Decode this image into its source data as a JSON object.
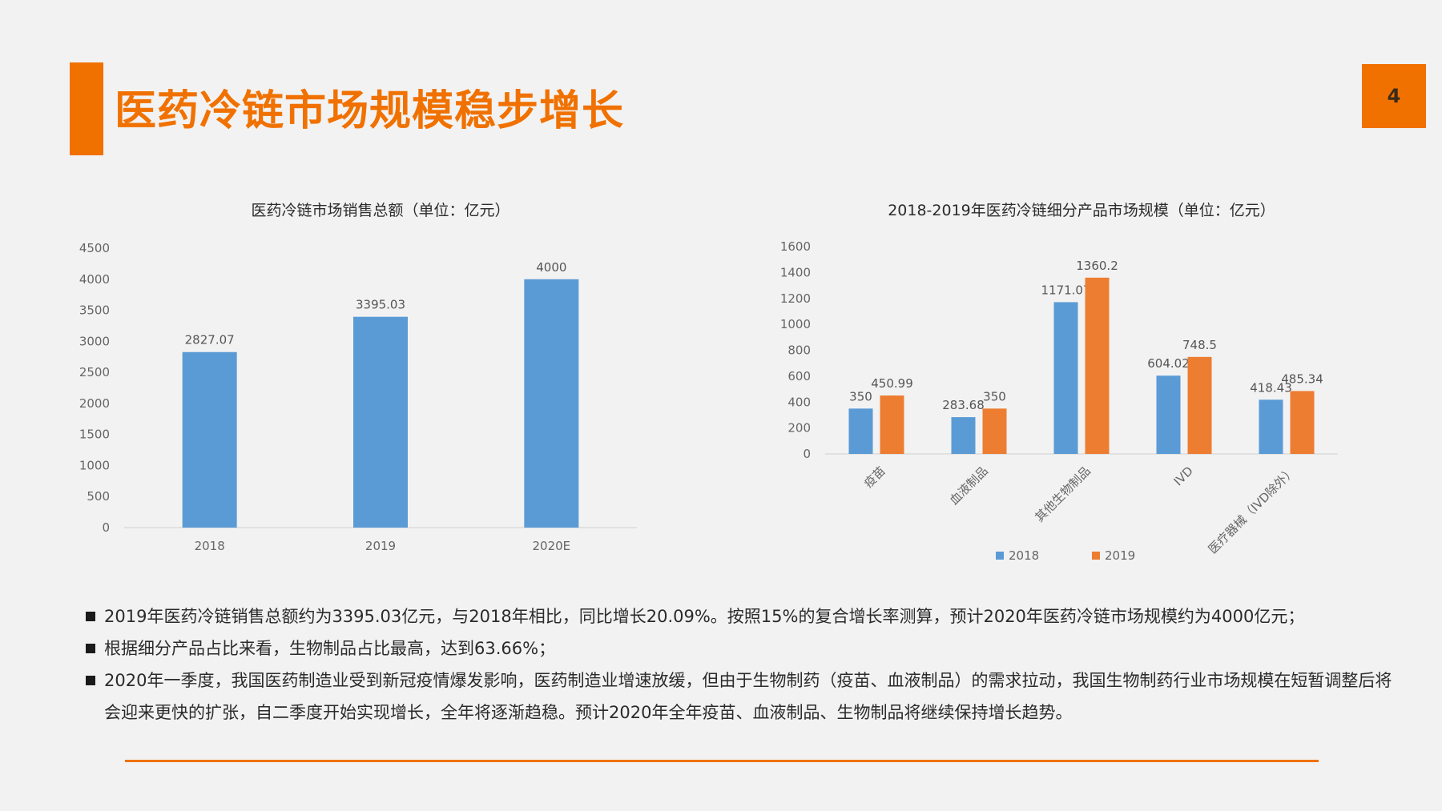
{
  "page": {
    "title": "医药冷链市场规模稳步增长",
    "number": "4",
    "accent_color": "#f07100"
  },
  "chart_data": [
    {
      "type": "bar",
      "title": "医药冷链市场销售总额（单位：亿元）",
      "categories": [
        "2018",
        "2019",
        "2020E"
      ],
      "series": [
        {
          "values": [
            2827.07,
            3395.03,
            4000
          ],
          "labels": [
            "2827.07",
            "3395.03",
            "4000"
          ],
          "color": "#5b9bd5"
        }
      ],
      "yticks": [
        "0",
        "500",
        "1000",
        "1500",
        "2000",
        "2500",
        "3000",
        "3500",
        "4000",
        "4500"
      ],
      "ylim": [
        0,
        4500
      ],
      "grid": false,
      "legend": "none"
    },
    {
      "type": "bar",
      "title": "2018-2019年医药冷链细分产品市场规模（单位：亿元）",
      "categories": [
        "疫苗",
        "血液制品",
        "其他生物制品",
        "IVD",
        "医疗器械（IVD除外）"
      ],
      "series": [
        {
          "name": "2018",
          "values": [
            350,
            283.68,
            1171.07,
            604.02,
            418.43
          ],
          "labels": [
            "350",
            "283.68",
            "1171.07",
            "604.02",
            "418.43"
          ],
          "color": "#5b9bd5"
        },
        {
          "name": "2019",
          "values": [
            450.99,
            350,
            1360.2,
            748.5,
            485.34
          ],
          "labels": [
            "450.99",
            "350",
            "1360.2",
            "748.5",
            "485.34"
          ],
          "color": "#ed7d31"
        }
      ],
      "yticks": [
        "0",
        "200",
        "400",
        "600",
        "800",
        "1000",
        "1200",
        "1400",
        "1600"
      ],
      "ylim": [
        0,
        1600
      ],
      "grid": false,
      "legend": "bottom"
    }
  ],
  "bullets": [
    "2019年医药冷链销售总额约为3395.03亿元，与2018年相比，同比增长20.09%。按照15%的复合增长率测算，预计2020年医药冷链市场规模约为4000亿元；",
    "根据细分产品占比来看，生物制品占比最高，达到63.66%；",
    "2020年一季度，我国医药制造业受到新冠疫情爆发影响，医药制造业增速放缓，但由于生物制药（疫苗、血液制品）的需求拉动，我国生物制药行业市场规模在短暂调整后将会迎来更快的扩张，自二季度开始实现增长，全年将逐渐趋稳。预计2020年全年疫苗、血液制品、生物制品将继续保持增长趋势。"
  ]
}
